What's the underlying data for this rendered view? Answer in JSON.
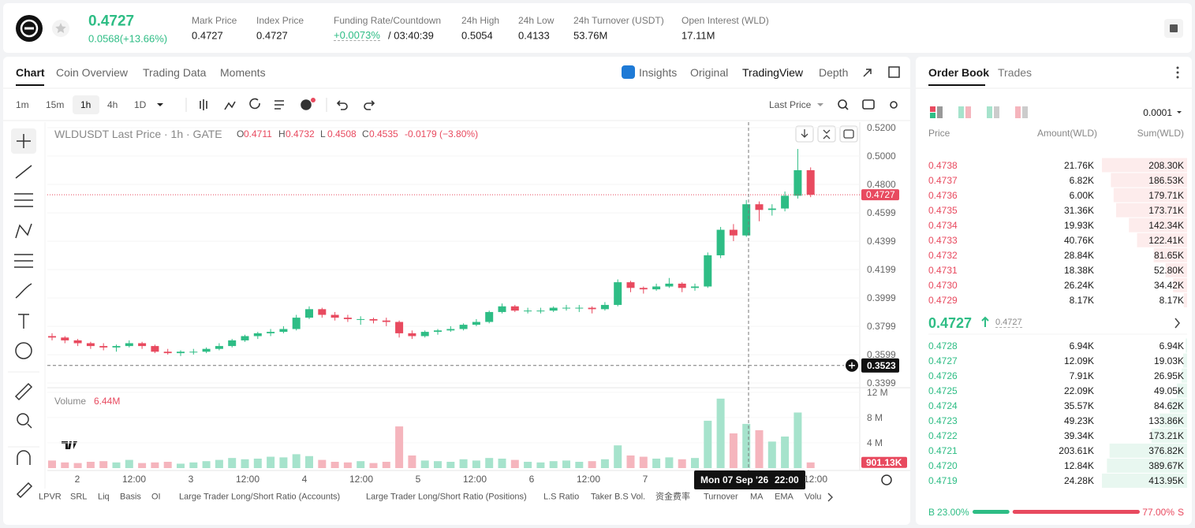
{
  "header": {
    "price": "0.4727",
    "change": "0.0568(+13.66%)",
    "fields": [
      {
        "label": "Mark Price",
        "value": "0.4727"
      },
      {
        "label": "Index Price",
        "value": "0.4727"
      },
      {
        "label": "Funding Rate/Countdown",
        "value": "+0.0073%",
        "countdown": "/ 03:40:39"
      },
      {
        "label": "24h High",
        "value": "0.5054"
      },
      {
        "label": "24h Low",
        "value": "0.4133"
      },
      {
        "label": "24h Turnover (USDT)",
        "value": "53.76M"
      },
      {
        "label": "Open Interest (WLD)",
        "value": "17.11M"
      }
    ]
  },
  "tabs": [
    "Chart",
    "Coin Overview",
    "Trading Data",
    "Moments"
  ],
  "views": [
    "Insights",
    "Original",
    "TradingView",
    "Depth"
  ],
  "intervals": [
    "1m",
    "15m",
    "1h",
    "4h",
    "1D"
  ],
  "price_type": "Last Price",
  "chart": {
    "symbol": "WLDUSDT Last Price · 1h · GATE",
    "ohlc": [
      {
        "key": "O",
        "value": "0.4711"
      },
      {
        "key": "H",
        "value": "0.4732"
      },
      {
        "key": "L",
        "value": "0.4508"
      },
      {
        "key": "C",
        "value": "0.4535"
      }
    ],
    "change": "-0.0179 (−3.80%)",
    "ylim": [
      0.3366,
      0.5239
    ],
    "yticks": [
      {
        "value": 0.52,
        "label": "0.5200"
      },
      {
        "value": 0.5,
        "label": "0.5000"
      },
      {
        "value": 0.48,
        "label": "0.4800"
      },
      {
        "value": 0.4599,
        "label": "0.4599"
      },
      {
        "value": 0.4399,
        "label": "0.4399"
      },
      {
        "value": 0.4199,
        "label": "0.4199"
      },
      {
        "value": 0.3999,
        "label": "0.3999"
      },
      {
        "value": 0.3799,
        "label": "0.3799"
      },
      {
        "value": 0.3599,
        "label": "0.3599"
      },
      {
        "value": 0.3399,
        "label": "0.3399"
      }
    ],
    "candles": [
      [
        0.373,
        0.375,
        0.37,
        0.372
      ],
      [
        0.372,
        0.373,
        0.368,
        0.37
      ],
      [
        0.37,
        0.371,
        0.366,
        0.368
      ],
      [
        0.368,
        0.369,
        0.364,
        0.366
      ],
      [
        0.366,
        0.368,
        0.363,
        0.365
      ],
      [
        0.365,
        0.367,
        0.362,
        0.366
      ],
      [
        0.366,
        0.37,
        0.365,
        0.368
      ],
      [
        0.368,
        0.369,
        0.364,
        0.366
      ],
      [
        0.366,
        0.367,
        0.361,
        0.362
      ],
      [
        0.362,
        0.364,
        0.36,
        0.361
      ],
      [
        0.361,
        0.363,
        0.359,
        0.362
      ],
      [
        0.362,
        0.364,
        0.36,
        0.362
      ],
      [
        0.362,
        0.365,
        0.361,
        0.364
      ],
      [
        0.364,
        0.368,
        0.363,
        0.366
      ],
      [
        0.366,
        0.371,
        0.365,
        0.37
      ],
      [
        0.37,
        0.374,
        0.369,
        0.373
      ],
      [
        0.373,
        0.376,
        0.371,
        0.375
      ],
      [
        0.375,
        0.378,
        0.373,
        0.376
      ],
      [
        0.376,
        0.38,
        0.375,
        0.378
      ],
      [
        0.378,
        0.388,
        0.377,
        0.386
      ],
      [
        0.386,
        0.394,
        0.385,
        0.392
      ],
      [
        0.392,
        0.393,
        0.386,
        0.388
      ],
      [
        0.388,
        0.39,
        0.384,
        0.386
      ],
      [
        0.386,
        0.388,
        0.383,
        0.385
      ],
      [
        0.385,
        0.387,
        0.381,
        0.385
      ],
      [
        0.385,
        0.386,
        0.382,
        0.384
      ],
      [
        0.384,
        0.386,
        0.38,
        0.383
      ],
      [
        0.383,
        0.384,
        0.372,
        0.375
      ],
      [
        0.375,
        0.377,
        0.371,
        0.373
      ],
      [
        0.373,
        0.377,
        0.372,
        0.376
      ],
      [
        0.376,
        0.378,
        0.374,
        0.377
      ],
      [
        0.377,
        0.38,
        0.376,
        0.378
      ],
      [
        0.378,
        0.382,
        0.377,
        0.381
      ],
      [
        0.381,
        0.385,
        0.38,
        0.383
      ],
      [
        0.383,
        0.391,
        0.382,
        0.39
      ],
      [
        0.39,
        0.396,
        0.389,
        0.394
      ],
      [
        0.394,
        0.395,
        0.39,
        0.391
      ],
      [
        0.391,
        0.393,
        0.389,
        0.391
      ],
      [
        0.391,
        0.393,
        0.389,
        0.391
      ],
      [
        0.391,
        0.394,
        0.39,
        0.393
      ],
      [
        0.393,
        0.395,
        0.391,
        0.393
      ],
      [
        0.393,
        0.395,
        0.39,
        0.393
      ],
      [
        0.393,
        0.394,
        0.389,
        0.392
      ],
      [
        0.392,
        0.397,
        0.391,
        0.395
      ],
      [
        0.395,
        0.413,
        0.394,
        0.411
      ],
      [
        0.411,
        0.412,
        0.404,
        0.407
      ],
      [
        0.407,
        0.408,
        0.403,
        0.406
      ],
      [
        0.406,
        0.41,
        0.405,
        0.408
      ],
      [
        0.408,
        0.414,
        0.407,
        0.41
      ],
      [
        0.41,
        0.411,
        0.404,
        0.407
      ],
      [
        0.407,
        0.41,
        0.405,
        0.408
      ],
      [
        0.408,
        0.432,
        0.407,
        0.43
      ],
      [
        0.43,
        0.45,
        0.428,
        0.448
      ],
      [
        0.448,
        0.452,
        0.44,
        0.444
      ],
      [
        0.444,
        0.469,
        0.443,
        0.466
      ],
      [
        0.466,
        0.468,
        0.454,
        0.462
      ],
      [
        0.462,
        0.466,
        0.458,
        0.463
      ],
      [
        0.463,
        0.475,
        0.461,
        0.472
      ],
      [
        0.472,
        0.505,
        0.47,
        0.49
      ],
      [
        0.49,
        0.492,
        0.471,
        0.4727
      ]
    ],
    "volume_label": "Volume",
    "volume_value": "6.44M",
    "volume_ylim": [
      0,
      12.6
    ],
    "volume_yticks": [
      {
        "value": 12,
        "label": "12 M"
      },
      {
        "value": 8,
        "label": "8 M"
      },
      {
        "value": 4,
        "label": "4 M"
      }
    ],
    "volumes": [
      1.2,
      0.9,
      0.8,
      1.0,
      1.1,
      0.9,
      1.3,
      0.8,
      0.9,
      1.0,
      0.7,
      0.9,
      1.1,
      1.3,
      1.6,
      1.4,
      1.5,
      1.8,
      1.7,
      2.2,
      1.9,
      1.3,
      1.0,
      0.9,
      1.1,
      0.8,
      1.0,
      6.6,
      2.0,
      1.2,
      1.1,
      1.0,
      1.4,
      1.2,
      1.6,
      1.5,
      1.3,
      1.0,
      0.9,
      1.1,
      1.2,
      1.0,
      1.1,
      1.4,
      3.6,
      2.0,
      1.8,
      1.5,
      1.7,
      1.4,
      1.6,
      7.5,
      11.0,
      5.5,
      7.0,
      6.0,
      4.2,
      5.0,
      8.8,
      0.90113
    ],
    "last_volume": {
      "value": 0.90113,
      "label": "901.13K"
    },
    "last_price": {
      "value": 0.4727,
      "label": "0.4727"
    },
    "crosshair_price": {
      "value": 0.3523,
      "label": "0.3523"
    },
    "crosshair_date": "Mon 07 Sep '26",
    "crosshair_time": "22:00",
    "x_labels": [
      "2",
      "12:00",
      "3",
      "12:00",
      "4",
      "12:00",
      "5",
      "12:00",
      "6",
      "12:00",
      "7",
      null,
      null,
      "12:00"
    ]
  },
  "indicators": [
    "LPVR",
    "SRL",
    "Liq",
    "Basis",
    "OI",
    "Large Trader Long/Short Ratio (Accounts)",
    "Large Trader Long/Short Ratio (Positions)",
    "L.S Ratio",
    "Taker B.S Vol.",
    "资金费率",
    "Turnover",
    "MA",
    "EMA",
    "Volu"
  ],
  "order_book": {
    "tabs": [
      "Order Book",
      "Trades"
    ],
    "precision": "0.0001",
    "columns": [
      "Price",
      "Amount(WLD)",
      "Sum(WLD)"
    ],
    "asks": [
      {
        "price": "0.4738",
        "amount": "21.76K",
        "sum": {
          "value": 208300,
          "label": "208.30K"
        }
      },
      {
        "price": "0.4737",
        "amount": "6.82K",
        "sum": {
          "value": 186530,
          "label": "186.53K"
        }
      },
      {
        "price": "0.4736",
        "amount": "6.00K",
        "sum": {
          "value": 179710,
          "label": "179.71K"
        }
      },
      {
        "price": "0.4735",
        "amount": "31.36K",
        "sum": {
          "value": 173710,
          "label": "173.71K"
        }
      },
      {
        "price": "0.4734",
        "amount": "19.93K",
        "sum": {
          "value": 142340,
          "label": "142.34K"
        }
      },
      {
        "price": "0.4733",
        "amount": "40.76K",
        "sum": {
          "value": 122410,
          "label": "122.41K"
        }
      },
      {
        "price": "0.4732",
        "amount": "28.84K",
        "sum": {
          "value": 81650,
          "label": "81.65K"
        }
      },
      {
        "price": "0.4731",
        "amount": "18.38K",
        "sum": {
          "value": 52800,
          "label": "52.80K"
        }
      },
      {
        "price": "0.4730",
        "amount": "26.24K",
        "sum": {
          "value": 34420,
          "label": "34.42K"
        }
      },
      {
        "price": "0.4729",
        "amount": "8.17K",
        "sum": {
          "value": 8170,
          "label": "8.17K"
        }
      }
    ],
    "mid_price": "0.4727",
    "mark_price": "0.4727",
    "bids": [
      {
        "price": "0.4728",
        "amount": "6.94K",
        "sum": {
          "value": 6940,
          "label": "6.94K"
        }
      },
      {
        "price": "0.4727",
        "amount": "12.09K",
        "sum": {
          "value": 19030,
          "label": "19.03K"
        }
      },
      {
        "price": "0.4726",
        "amount": "7.91K",
        "sum": {
          "value": 26950,
          "label": "26.95K"
        }
      },
      {
        "price": "0.4725",
        "amount": "22.09K",
        "sum": {
          "value": 49050,
          "label": "49.05K"
        }
      },
      {
        "price": "0.4724",
        "amount": "35.57K",
        "sum": {
          "value": 84620,
          "label": "84.62K"
        }
      },
      {
        "price": "0.4723",
        "amount": "49.23K",
        "sum": {
          "value": 133860,
          "label": "133.86K"
        }
      },
      {
        "price": "0.4722",
        "amount": "39.34K",
        "sum": {
          "value": 173210,
          "label": "173.21K"
        }
      },
      {
        "price": "0.4721",
        "amount": "203.61K",
        "sum": {
          "value": 376820,
          "label": "376.82K"
        }
      },
      {
        "price": "0.4720",
        "amount": "12.84K",
        "sum": {
          "value": 389670,
          "label": "389.67K"
        }
      },
      {
        "price": "0.4719",
        "amount": "24.28K",
        "sum": {
          "value": 413950,
          "label": "413.95K"
        }
      }
    ],
    "buy_key": "B",
    "buy": {
      "value": 23,
      "label": "23.00%"
    },
    "sell": {
      "value": 77,
      "label": "77.00%"
    },
    "sell_key": "S"
  }
}
